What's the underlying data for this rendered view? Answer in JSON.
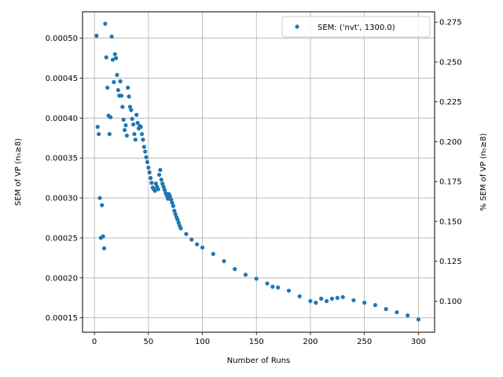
{
  "chart_data": {
    "type": "scatter",
    "title": "",
    "xlabel": "Number of Runs",
    "ylabel_left": "SEM of VP (n₅≥8)",
    "ylabel_right": "% SEM of VP (n₅≥8)",
    "xlim": [
      -11,
      315
    ],
    "ylim_left": [
      0.000132,
      0.000533
    ],
    "ylim_right": [
      0.0805,
      0.2815
    ],
    "xticks": [
      0,
      50,
      100,
      150,
      200,
      250,
      300
    ],
    "xtick_labels": [
      "0",
      "50",
      "100",
      "150",
      "200",
      "250",
      "300"
    ],
    "yticks_left": [
      0.00015,
      0.0002,
      0.00025,
      0.0003,
      0.00035,
      0.0004,
      0.00045,
      0.0005
    ],
    "ytick_labels_left": [
      "0.00015",
      "0.00020",
      "0.00025",
      "0.00030",
      "0.00035",
      "0.00040",
      "0.00045",
      "0.00050"
    ],
    "yticks_right": [
      0.1,
      0.125,
      0.15,
      0.175,
      0.2,
      0.225,
      0.25,
      0.275
    ],
    "ytick_labels_right": [
      "0.100",
      "0.125",
      "0.150",
      "0.175",
      "0.200",
      "0.225",
      "0.250",
      "0.275"
    ],
    "grid": true,
    "legend_position": "top-right",
    "series": [
      {
        "name": "SEM: ('nvt', 1300.0)",
        "color": "#1f77b4",
        "x": [
          2,
          3,
          4,
          5,
          6,
          7,
          8,
          9,
          10,
          11,
          12,
          13,
          14,
          15,
          16,
          17,
          18,
          19,
          20,
          21,
          22,
          23,
          24,
          25,
          26,
          27,
          28,
          29,
          30,
          31,
          32,
          33,
          34,
          35,
          36,
          37,
          38,
          39,
          40,
          41,
          42,
          43,
          44,
          45,
          46,
          47,
          48,
          49,
          50,
          51,
          52,
          53,
          54,
          55,
          56,
          57,
          58,
          59,
          60,
          61,
          62,
          63,
          64,
          65,
          66,
          67,
          68,
          69,
          70,
          71,
          72,
          73,
          74,
          75,
          76,
          77,
          78,
          79,
          80,
          85,
          90,
          95,
          100,
          110,
          120,
          130,
          140,
          150,
          160,
          165,
          170,
          180,
          190,
          200,
          205,
          210,
          215,
          220,
          225,
          230,
          240,
          250,
          260,
          270,
          280,
          290,
          300
        ],
        "y": [
          0.000503,
          0.000389,
          0.00038,
          0.0003,
          0.00025,
          0.000291,
          0.000252,
          0.000237,
          0.000518,
          0.000476,
          0.000438,
          0.000403,
          0.00038,
          0.000401,
          0.000502,
          0.000473,
          0.000445,
          0.00048,
          0.000475,
          0.000454,
          0.000435,
          0.000428,
          0.000446,
          0.000428,
          0.000414,
          0.000398,
          0.000385,
          0.000391,
          0.000378,
          0.000438,
          0.000427,
          0.000414,
          0.00041,
          0.000399,
          0.000392,
          0.00038,
          0.000373,
          0.000404,
          0.000394,
          0.000387,
          0.00039,
          0.000389,
          0.00038,
          0.000373,
          0.000364,
          0.000358,
          0.000351,
          0.000345,
          0.000338,
          0.000332,
          0.000325,
          0.000319,
          0.000313,
          0.000311,
          0.000309,
          0.000318,
          0.000314,
          0.000311,
          0.000329,
          0.000335,
          0.000323,
          0.000318,
          0.000314,
          0.00031,
          0.000306,
          0.000303,
          0.000299,
          0.000305,
          0.000302,
          0.000298,
          0.000294,
          0.00029,
          0.000284,
          0.00028,
          0.000276,
          0.000273,
          0.000269,
          0.000265,
          0.000262,
          0.000255,
          0.000248,
          0.000242,
          0.000238,
          0.00023,
          0.000221,
          0.000211,
          0.000204,
          0.000199,
          0.000193,
          0.000189,
          0.000188,
          0.000184,
          0.000177,
          0.000171,
          0.000169,
          0.000174,
          0.000171,
          0.000174,
          0.000175,
          0.000176,
          0.000172,
          0.000169,
          0.000166,
          0.000161,
          0.000157,
          0.000153,
          0.000148
        ]
      }
    ]
  }
}
